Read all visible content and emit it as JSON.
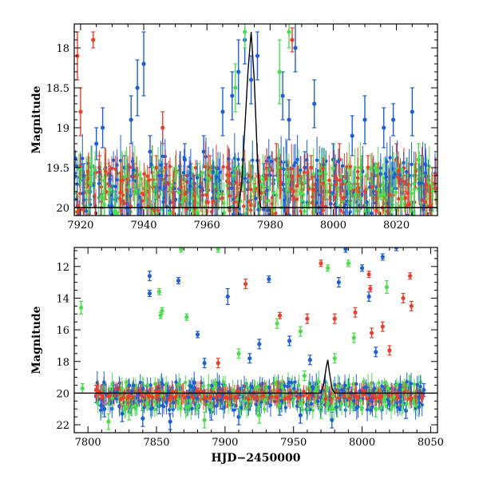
{
  "chart_data": [
    {
      "type": "scatter",
      "title": "",
      "xlabel": "",
      "ylabel": "Magnitude",
      "xlim": [
        7918,
        8033
      ],
      "ylim": [
        20.1,
        17.7
      ],
      "y_inverted": true,
      "xticks": [
        7920,
        7940,
        7960,
        7980,
        8000,
        8020
      ],
      "yticks": [
        18,
        18.5,
        19,
        19.5,
        20
      ],
      "ytick_labels": [
        "18",
        "18.5",
        "19",
        "19.5",
        "20"
      ],
      "colors": {
        "blue": "#1f5fd6",
        "red": "#e8402a",
        "green": "#4ddc4d"
      },
      "series": [
        {
          "color": "blue",
          "points": [
            [
              7921,
              19.6,
              0.15
            ],
            [
              7923,
              19.8,
              0.1
            ],
            [
              7925,
              19.2,
              0.2
            ],
            [
              7927,
              19.0,
              0.25
            ],
            [
              7929,
              19.7,
              0.1
            ],
            [
              7931,
              19.9,
              0.1
            ],
            [
              7934,
              19.5,
              0.15
            ],
            [
              7936,
              18.9,
              0.3
            ],
            [
              7938,
              18.5,
              0.35
            ],
            [
              7940,
              18.2,
              0.4
            ],
            [
              7942,
              19.3,
              0.2
            ],
            [
              7944,
              19.8,
              0.1
            ],
            [
              7947,
              19.6,
              0.15
            ],
            [
              7950,
              19.9,
              0.1
            ],
            [
              7953,
              19.4,
              0.2
            ],
            [
              7956,
              19.7,
              0.1
            ],
            [
              7959,
              19.3,
              0.2
            ],
            [
              7962,
              19.8,
              0.1
            ],
            [
              7965,
              18.8,
              0.3
            ],
            [
              7968,
              18.6,
              0.3
            ],
            [
              7970,
              18.3,
              0.4
            ],
            [
              7972,
              17.9,
              0.3
            ],
            [
              7974,
              18.4,
              0.3
            ],
            [
              7976,
              18.1,
              0.3
            ],
            [
              7978,
              19.6,
              0.15
            ],
            [
              7981,
              19.7,
              0.1
            ],
            [
              7984,
              18.6,
              0.3
            ],
            [
              7986,
              18.9,
              0.25
            ],
            [
              7988,
              18.0,
              0.3
            ],
            [
              7991,
              19.5,
              0.2
            ],
            [
              7994,
              18.7,
              0.3
            ],
            [
              7997,
              19.8,
              0.1
            ],
            [
              8000,
              19.4,
              0.2
            ],
            [
              8003,
              19.7,
              0.1
            ],
            [
              8006,
              19.1,
              0.25
            ],
            [
              8010,
              18.9,
              0.3
            ],
            [
              8013,
              19.6,
              0.15
            ],
            [
              8016,
              19.0,
              0.25
            ],
            [
              8019,
              18.9,
              0.2
            ],
            [
              8022,
              19.7,
              0.1
            ],
            [
              8025,
              18.8,
              0.3
            ],
            [
              8028,
              19.5,
              0.15
            ],
            [
              8031,
              19.9,
              0.1
            ]
          ]
        },
        {
          "color": "red",
          "points": [
            [
              7919,
              18.1,
              0.3
            ],
            [
              7920,
              18.8,
              0.3
            ],
            [
              7922,
              19.7,
              0.1
            ],
            [
              7924,
              17.9,
              0.1
            ],
            [
              7926,
              19.5,
              0.15
            ],
            [
              7928,
              19.8,
              0.1
            ],
            [
              7933,
              19.7,
              0.1
            ],
            [
              7937,
              19.6,
              0.15
            ],
            [
              7941,
              19.8,
              0.1
            ],
            [
              7944,
              19.5,
              0.15
            ],
            [
              7946,
              19.0,
              0.2
            ],
            [
              7948,
              19.7,
              0.1
            ],
            [
              7952,
              19.8,
              0.1
            ],
            [
              7955,
              19.6,
              0.15
            ],
            [
              7958,
              19.7,
              0.1
            ],
            [
              7961,
              19.5,
              0.15
            ],
            [
              7964,
              19.8,
              0.1
            ],
            [
              7967,
              19.6,
              0.15
            ],
            [
              7971,
              19.7,
              0.1
            ],
            [
              7975,
              19.8,
              0.1
            ],
            [
              7979,
              19.6,
              0.15
            ],
            [
              7982,
              19.4,
              0.2
            ],
            [
              7985,
              19.8,
              0.1
            ],
            [
              7987,
              17.9,
              0.15
            ],
            [
              7990,
              19.7,
              0.1
            ],
            [
              7993,
              19.5,
              0.15
            ],
            [
              7996,
              19.6,
              0.15
            ],
            [
              7999,
              19.8,
              0.1
            ],
            [
              8002,
              19.4,
              0.2
            ],
            [
              8005,
              19.7,
              0.1
            ],
            [
              8008,
              19.8,
              0.1
            ],
            [
              8011,
              19.5,
              0.15
            ],
            [
              8014,
              19.6,
              0.15
            ],
            [
              8017,
              19.8,
              0.1
            ],
            [
              8020,
              19.4,
              0.2
            ],
            [
              8023,
              19.7,
              0.1
            ],
            [
              8026,
              19.6,
              0.15
            ],
            [
              8029,
              19.8,
              0.1
            ],
            [
              8032,
              19.7,
              0.1
            ]
          ]
        },
        {
          "color": "green",
          "points": [
            [
              7922,
              19.8,
              0.1
            ],
            [
              7928,
              19.6,
              0.15
            ],
            [
              7935,
              19.9,
              0.1
            ],
            [
              7943,
              19.7,
              0.1
            ],
            [
              7949,
              19.8,
              0.1
            ],
            [
              7957,
              19.6,
              0.15
            ],
            [
              7963,
              19.9,
              0.1
            ],
            [
              7969,
              18.5,
              0.3
            ],
            [
              7972,
              17.8,
              0.2
            ],
            [
              7977,
              19.7,
              0.1
            ],
            [
              7980,
              19.5,
              0.15
            ],
            [
              7983,
              18.3,
              0.4
            ],
            [
              7986,
              17.8,
              0.2
            ],
            [
              7992,
              19.6,
              0.15
            ],
            [
              7998,
              19.8,
              0.1
            ],
            [
              8004,
              19.7,
              0.1
            ],
            [
              8009,
              19.5,
              0.15
            ],
            [
              8015,
              19.8,
              0.1
            ],
            [
              8021,
              19.6,
              0.15
            ],
            [
              8027,
              19.4,
              0.2
            ],
            [
              8030,
              19.7,
              0.1
            ]
          ]
        }
      ],
      "model_curve": [
        [
          7918,
          20.0
        ],
        [
          7970,
          20.0
        ],
        [
          7971,
          19.7
        ],
        [
          7972,
          19.0
        ],
        [
          7973,
          18.3
        ],
        [
          7974,
          17.8
        ],
        [
          7975,
          18.4
        ],
        [
          7976,
          19.4
        ],
        [
          7977,
          20.0
        ],
        [
          8033,
          20.0
        ]
      ]
    },
    {
      "type": "scatter",
      "title": "",
      "xlabel": "HJD−2450000",
      "ylabel": "Magnitude",
      "xlim": [
        7790,
        8055
      ],
      "ylim": [
        22.5,
        10.8
      ],
      "y_inverted": true,
      "xticks": [
        7800,
        7850,
        7900,
        7950,
        8000,
        8050
      ],
      "yticks": [
        12,
        14,
        16,
        18,
        20,
        22
      ],
      "ytick_labels": [
        "12",
        "14",
        "16",
        "18",
        "20",
        "22"
      ],
      "colors": {
        "blue": "#1f5fd6",
        "red": "#e8402a",
        "green": "#4ddc4d"
      },
      "series": [
        {
          "color": "blue",
          "points": [
            [
              7806,
              20.2,
              0.4
            ],
            [
              7812,
              21.0,
              0.5
            ],
            [
              7818,
              19.9,
              0.4
            ],
            [
              7825,
              21.3,
              0.5
            ],
            [
              7832,
              20.5,
              0.4
            ],
            [
              7840,
              21.6,
              0.5
            ],
            [
              7845,
              12.6,
              0.3
            ],
            [
              7845,
              13.7,
              0.2
            ],
            [
              7852,
              20.8,
              0.5
            ],
            [
              7860,
              21.8,
              0.5
            ],
            [
              7866,
              12.9,
              0.2
            ],
            [
              7872,
              20.4,
              0.4
            ],
            [
              7880,
              16.3,
              0.2
            ],
            [
              7885,
              18.1,
              0.3
            ],
            [
              7890,
              21.2,
              0.5
            ],
            [
              7897,
              20.6,
              0.4
            ],
            [
              7902,
              13.9,
              0.5
            ],
            [
              7910,
              21.5,
              0.5
            ],
            [
              7918,
              17.8,
              0.3
            ],
            [
              7925,
              16.9,
              0.3
            ],
            [
              7932,
              12.8,
              0.2
            ],
            [
              7940,
              20.9,
              0.5
            ],
            [
              7947,
              16.7,
              0.3
            ],
            [
              7955,
              21.4,
              0.5
            ],
            [
              7962,
              17.9,
              0.3
            ],
            [
              7970,
              20.3,
              0.4
            ],
            [
              7978,
              21.7,
              0.5
            ],
            [
              7983,
              13.0,
              0.3
            ],
            [
              7988,
              10.9,
              0.2
            ],
            [
              7995,
              20.7,
              0.4
            ],
            [
              8000,
              12.1,
              0.2
            ],
            [
              8005,
              13.9,
              0.3
            ],
            [
              8010,
              17.4,
              0.3
            ],
            [
              8015,
              11.4,
              0.2
            ],
            [
              8020,
              20.5,
              0.5
            ],
            [
              8025,
              10.8,
              0.2
            ],
            [
              8032,
              21.1,
              0.5
            ],
            [
              8040,
              20.4,
              0.4
            ],
            [
              8045,
              19.8,
              0.4
            ]
          ]
        },
        {
          "color": "red",
          "points": [
            [
              7806,
              19.8,
              0.3
            ],
            [
              7820,
              20.0,
              0.3
            ],
            [
              7835,
              19.9,
              0.3
            ],
            [
              7850,
              20.1,
              0.3
            ],
            [
              7865,
              19.8,
              0.3
            ],
            [
              7880,
              20.0,
              0.3
            ],
            [
              7895,
              18.1,
              0.3
            ],
            [
              7905,
              20.1,
              0.3
            ],
            [
              7915,
              13.1,
              0.3
            ],
            [
              7925,
              19.9,
              0.3
            ],
            [
              7940,
              15.1,
              0.2
            ],
            [
              7950,
              20.0,
              0.3
            ],
            [
              7960,
              15.3,
              0.3
            ],
            [
              7970,
              11.8,
              0.2
            ],
            [
              7980,
              15.3,
              0.3
            ],
            [
              7988,
              20.0,
              0.3
            ],
            [
              7995,
              14.9,
              0.3
            ],
            [
              8005,
              12.5,
              0.2
            ],
            [
              8006,
              13.4,
              0.2
            ],
            [
              8007,
              16.2,
              0.3
            ],
            [
              8015,
              15.8,
              0.3
            ],
            [
              8020,
              17.3,
              0.3
            ],
            [
              8030,
              14.0,
              0.3
            ],
            [
              8035,
              12.6,
              0.2
            ],
            [
              8036,
              14.5,
              0.3
            ],
            [
              8042,
              19.9,
              0.3
            ]
          ]
        },
        {
          "color": "green",
          "points": [
            [
              7795,
              14.6,
              0.4
            ],
            [
              7796,
              19.7,
              0.3
            ],
            [
              7815,
              21.8,
              0.5
            ],
            [
              7830,
              21.2,
              0.5
            ],
            [
              7852,
              13.6,
              0.2
            ],
            [
              7853,
              15.1,
              0.2
            ],
            [
              7854,
              14.8,
              0.2
            ],
            [
              7868,
              10.9,
              0.2
            ],
            [
              7872,
              15.2,
              0.2
            ],
            [
              7885,
              21.7,
              0.5
            ],
            [
              7895,
              10.9,
              0.2
            ],
            [
              7910,
              17.5,
              0.3
            ],
            [
              7925,
              21.4,
              0.5
            ],
            [
              7938,
              15.6,
              0.3
            ],
            [
              7955,
              16.1,
              0.3
            ],
            [
              7958,
              18.9,
              0.3
            ],
            [
              7970,
              21.1,
              0.5
            ],
            [
              7975,
              12.1,
              0.2
            ],
            [
              7980,
              17.8,
              0.3
            ],
            [
              7990,
              11.8,
              0.2
            ],
            [
              7994,
              16.5,
              0.3
            ],
            [
              8010,
              21.0,
              0.5
            ],
            [
              8018,
              13.3,
              0.4
            ],
            [
              8030,
              19.6,
              0.3
            ]
          ]
        }
      ],
      "model_curve": [
        [
          7790,
          20.0
        ],
        [
          7970,
          20.0
        ],
        [
          7972,
          19.4
        ],
        [
          7974,
          18.3
        ],
        [
          7975,
          17.9
        ],
        [
          7976,
          18.6
        ],
        [
          7978,
          19.7
        ],
        [
          7980,
          20.0
        ],
        [
          8055,
          20.0
        ]
      ]
    }
  ]
}
